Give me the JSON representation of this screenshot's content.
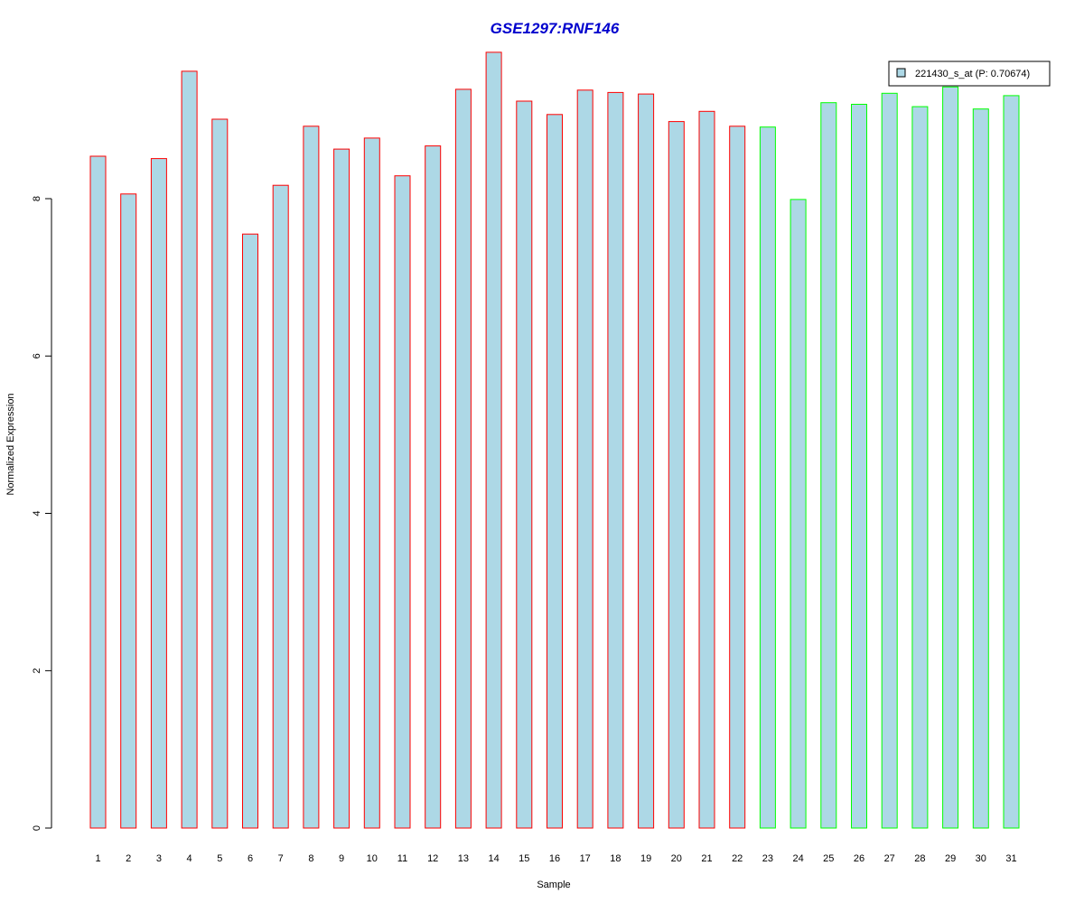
{
  "chart_data": {
    "type": "bar",
    "title": "GSE1297:RNF146",
    "xlabel": "Sample",
    "ylabel": "Normalized Expression",
    "categories": [
      "1",
      "2",
      "3",
      "4",
      "5",
      "6",
      "7",
      "8",
      "9",
      "10",
      "11",
      "12",
      "13",
      "14",
      "15",
      "16",
      "17",
      "18",
      "19",
      "20",
      "21",
      "22",
      "23",
      "24",
      "25",
      "26",
      "27",
      "28",
      "29",
      "30",
      "31"
    ],
    "series": [
      {
        "name": "221430_s_at (P: 0.70674)",
        "values": [
          8.54,
          8.06,
          8.51,
          9.62,
          9.01,
          7.55,
          8.17,
          8.92,
          8.63,
          8.77,
          8.29,
          8.67,
          9.39,
          9.86,
          9.24,
          9.07,
          9.38,
          9.35,
          9.33,
          8.98,
          9.11,
          8.92,
          8.91,
          7.99,
          9.22,
          9.2,
          9.34,
          9.17,
          9.42,
          9.14,
          9.31
        ]
      }
    ],
    "groups": [
      {
        "from": 1,
        "to": 22,
        "border_color": "#ff0000"
      },
      {
        "from": 23,
        "to": 31,
        "border_color": "#00ff00"
      }
    ],
    "bar_fill": "#add8e6",
    "title_color": "#0000cd",
    "ylim": [
      0,
      10
    ],
    "yticks": [
      "0",
      "2",
      "4",
      "6",
      "8"
    ],
    "legend_position": "top-right",
    "grid": false
  }
}
